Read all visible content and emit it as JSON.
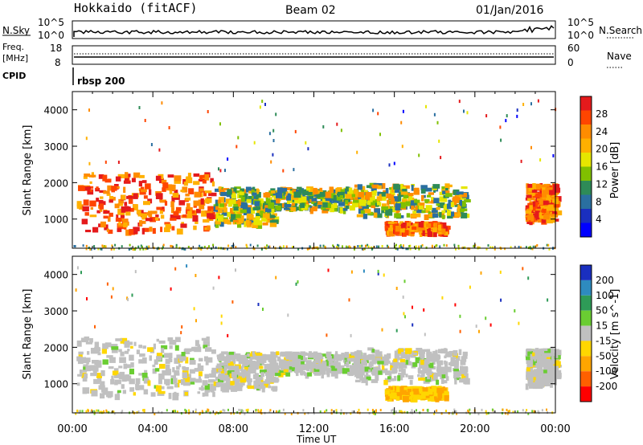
{
  "header": {
    "station": "Hokkaido (fitACF)",
    "beam": "Beam 02",
    "date": "01/Jan/2016"
  },
  "top_panels": {
    "nsky_label": "N.Sky",
    "nsearch_label": "N.Search",
    "nsky_ticks": [
      "10^5",
      "10^0"
    ],
    "nsearch_ticks": [
      "10^5",
      "10^0"
    ],
    "freq_label_1": "Freq.",
    "freq_label_2": "[MHz]",
    "freq_ticks": [
      "18",
      "8"
    ],
    "nave_label": "Nave",
    "nave_ticks": [
      "60",
      "0"
    ],
    "cpid_label": "CPID",
    "cpid_value": "rbsp 200"
  },
  "chart_data": [
    {
      "type": "heatmap",
      "panel": "power",
      "xlabel": "Time UT",
      "ylabel": "Slant Range [km]",
      "x_ticks": [
        "00:00",
        "04:00",
        "08:00",
        "12:00",
        "16:00",
        "20:00",
        "00:00"
      ],
      "xlim_hours": [
        0,
        24
      ],
      "y_ticks": [
        1000,
        2000,
        3000,
        4000
      ],
      "ylim": [
        200,
        4500
      ],
      "colorbar_label": "Power [dB]",
      "colorbar_ticks": [
        "28",
        "24",
        "20",
        "16",
        "12",
        "8",
        "4"
      ],
      "colorbar_colors": [
        "#e41a1c",
        "#ff4500",
        "#ff8c00",
        "#ffb000",
        "#e6e600",
        "#80c000",
        "#2e8b57",
        "#2a6fa0",
        "#1a2fbf",
        "#0000ff"
      ],
      "regions": [
        {
          "t0": 0.2,
          "t1": 7.0,
          "r0": 700,
          "r1": 2300,
          "level": "high"
        },
        {
          "t0": 7.0,
          "t1": 10.0,
          "r0": 900,
          "r1": 1900,
          "level": "medium"
        },
        {
          "t0": 10.0,
          "t1": 14.5,
          "r0": 1300,
          "r1": 1900,
          "level": "medium"
        },
        {
          "t0": 14.0,
          "t1": 19.5,
          "r0": 1100,
          "r1": 2000,
          "level": "medium"
        },
        {
          "t0": 15.5,
          "t1": 18.5,
          "r0": 650,
          "r1": 950,
          "level": "high"
        },
        {
          "t0": 22.5,
          "t1": 24.0,
          "r0": 1000,
          "r1": 2000,
          "level": "high"
        }
      ]
    },
    {
      "type": "heatmap",
      "panel": "velocity",
      "xlabel": "Time UT",
      "ylabel": "Slant Range [km]",
      "x_ticks": [
        "00:00",
        "04:00",
        "08:00",
        "12:00",
        "16:00",
        "20:00",
        "00:00"
      ],
      "xlim_hours": [
        0,
        24
      ],
      "y_ticks": [
        1000,
        2000,
        3000,
        4000
      ],
      "ylim": [
        200,
        4500
      ],
      "colorbar_label": "Velocity [m s^-1]",
      "colorbar_ticks": [
        "200",
        "100",
        "50",
        "15",
        "-15",
        "-50",
        "-100",
        "-200"
      ],
      "colorbar_colors": [
        "#1a2fbf",
        "#2e8bbf",
        "#2e9b57",
        "#6acd32",
        "#c0c0c0",
        "#ffd700",
        "#ffa500",
        "#ff6000",
        "#ff0000"
      ],
      "regions": [
        {
          "t0": 0.2,
          "t1": 7.0,
          "r0": 700,
          "r1": 2300,
          "level": "ground"
        },
        {
          "t0": 7.0,
          "t1": 10.0,
          "r0": 900,
          "r1": 1900,
          "level": "ground"
        },
        {
          "t0": 10.0,
          "t1": 14.5,
          "r0": 1300,
          "r1": 1900,
          "level": "ground"
        },
        {
          "t0": 14.0,
          "t1": 19.5,
          "r0": 1100,
          "r1": 2000,
          "level": "ground"
        },
        {
          "t0": 15.5,
          "t1": 18.5,
          "r0": 650,
          "r1": 950,
          "level": "negative"
        },
        {
          "t0": 22.5,
          "t1": 24.0,
          "r0": 1000,
          "r1": 2000,
          "level": "ground"
        }
      ]
    }
  ]
}
